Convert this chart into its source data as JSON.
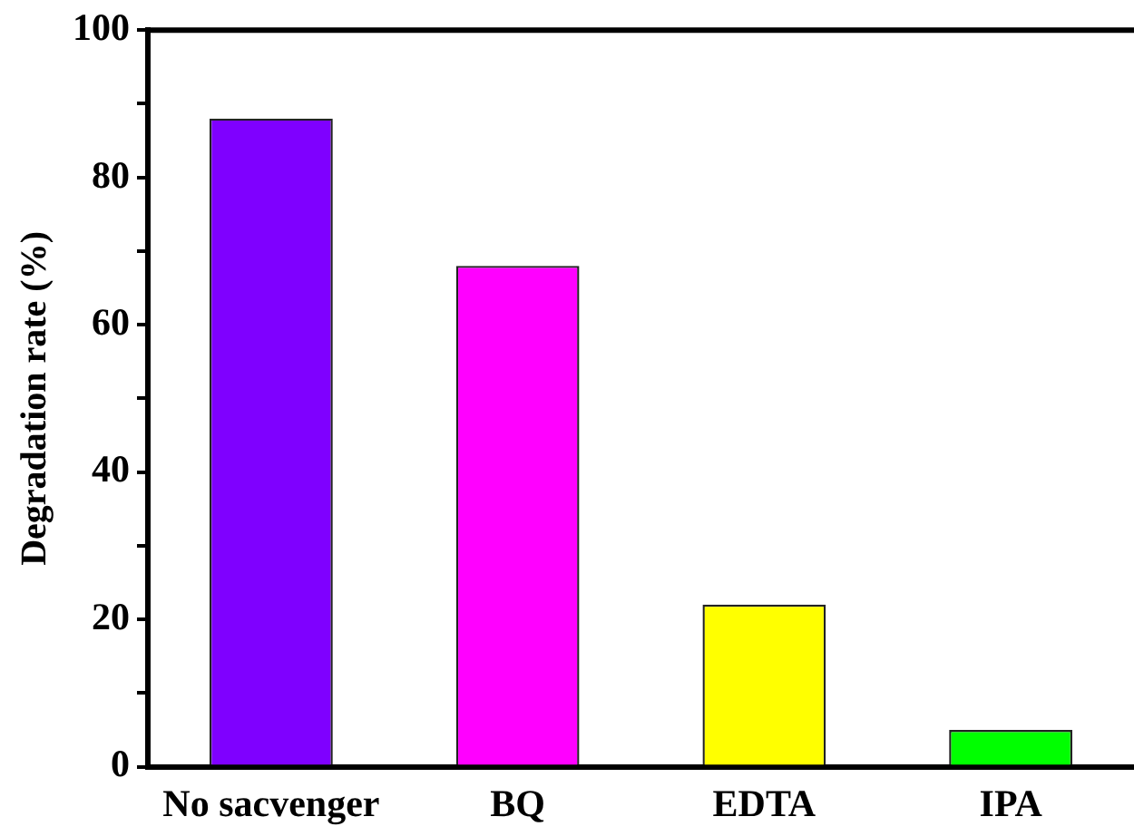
{
  "chart_data": {
    "type": "bar",
    "ylabel": "Degradation rate (%)",
    "categories": [
      "No sacvenger",
      "BQ",
      "EDTA",
      "IPA"
    ],
    "values": [
      88,
      68,
      22,
      5
    ],
    "colors": [
      "#7f00ff",
      "#ff00ff",
      "#ffff00",
      "#00ff00"
    ],
    "ylim": [
      0,
      100
    ],
    "yticks": [
      0,
      {
        "value": 10,
        "label": null
      },
      20,
      {
        "value": 30,
        "label": null
      },
      40,
      {
        "value": 50,
        "label": null
      },
      60,
      {
        "value": 70,
        "label": null
      },
      80,
      {
        "value": 90,
        "label": null
      },
      100
    ],
    "grid": false,
    "legend": false
  }
}
